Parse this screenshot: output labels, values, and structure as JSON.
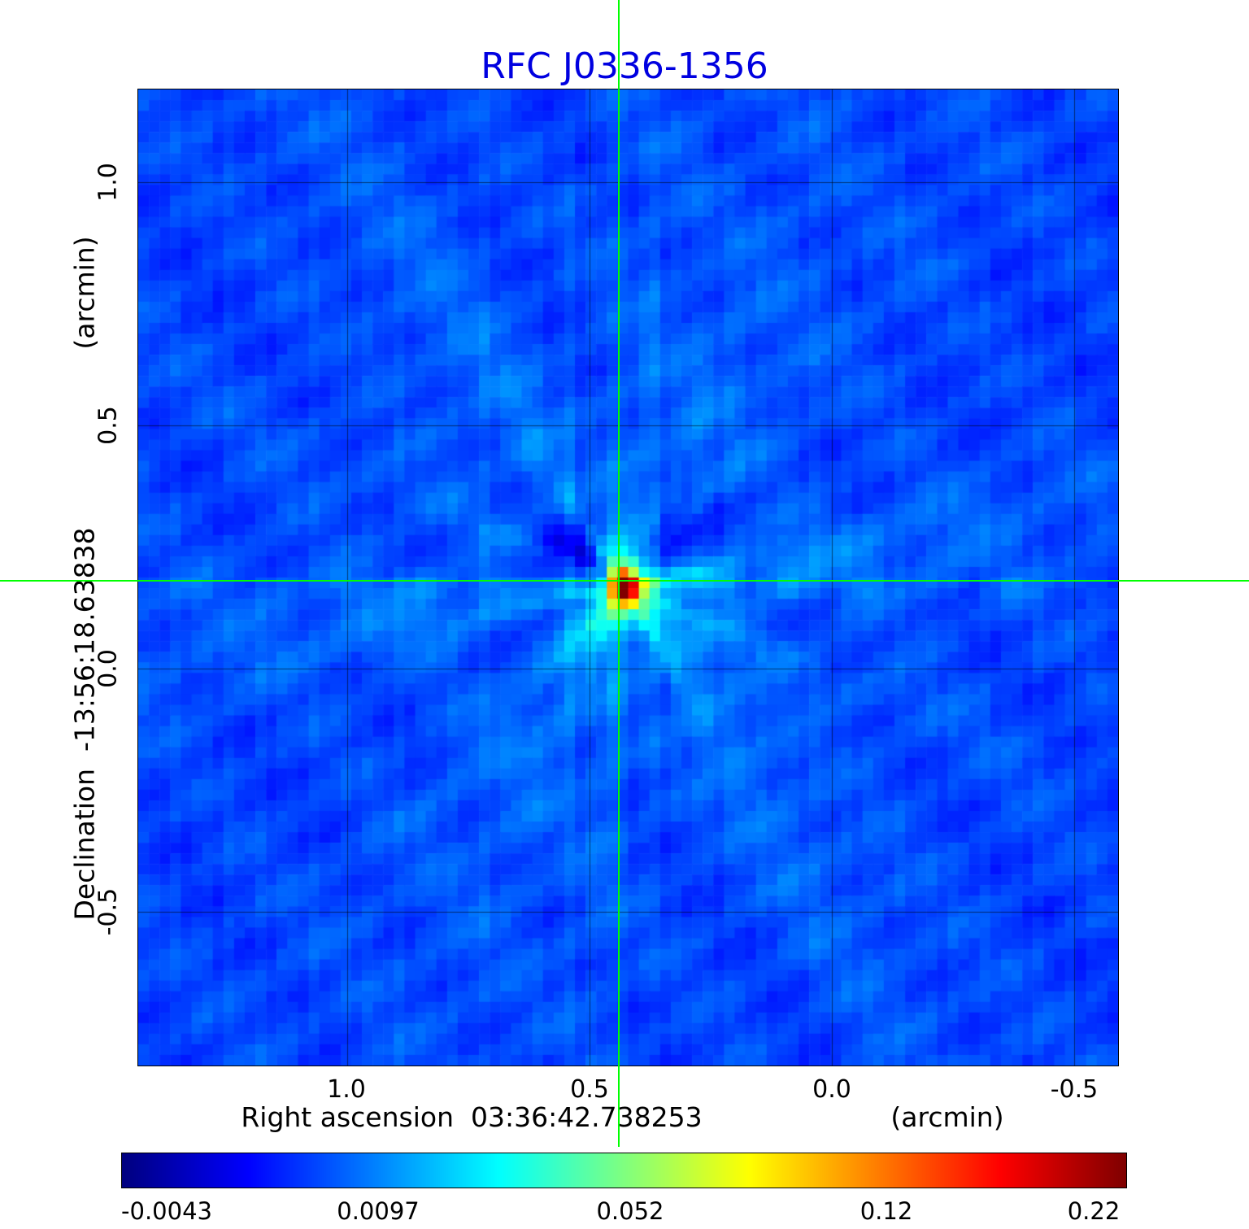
{
  "title": {
    "text": "RFC J0336-1356",
    "color": "#0000e0"
  },
  "chart_data": {
    "type": "heatmap",
    "title": "RFC J0336-1356",
    "xlabel": "Right ascension  03:36:42.738253",
    "xunit": "(arcmin)",
    "ylabel": "Declination  -13:56:18.63838",
    "yunit": "(arcmin)",
    "x_ticks": [
      1.0,
      0.5,
      0.0,
      -0.5
    ],
    "y_ticks": [
      1.0,
      0.5,
      0.0,
      -0.5
    ],
    "x_tick_labels": [
      "1.0",
      "0.5",
      "0.0",
      "-0.5"
    ],
    "y_tick_labels": [
      "1.0",
      "0.5",
      "0.0",
      "-0.5"
    ],
    "x_range": [
      1.43,
      -0.59
    ],
    "y_range": [
      -0.815,
      1.19
    ],
    "grid": true,
    "colormap": "jet",
    "colorbar_labels": [
      "-0.0043",
      "0.0097",
      "0.052",
      "0.12",
      "0.22"
    ],
    "value_min": -0.0043,
    "value_max": 0.22,
    "peak": {
      "x_arcmin": 0.44,
      "y_arcmin": 0.18,
      "value": 0.22
    },
    "crosshair": {
      "x_arcmin": 0.44,
      "y_arcmin": 0.18,
      "color": "#00ff00"
    },
    "background_level": 0.002,
    "cells": 92
  }
}
